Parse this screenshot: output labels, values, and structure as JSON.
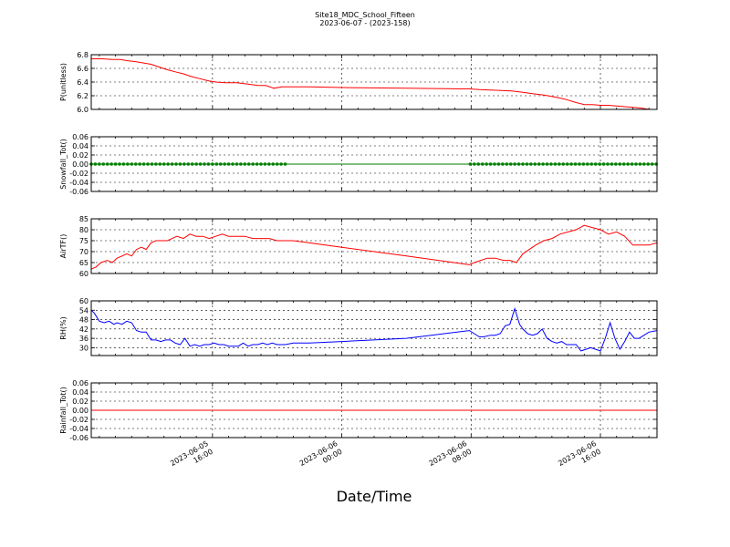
{
  "figure": {
    "title": "Site18_MDC_School_Fifteen",
    "subtitle": "2023-06-07 - (2023-158)",
    "xlabel": "Date/Time"
  },
  "chart_data": {
    "type": "line",
    "x_ticks": [
      {
        "t": 16,
        "label_line1": "2023-06-05",
        "label_line2": "16:00"
      },
      {
        "t": 24,
        "label_line1": "2023-06-06",
        "label_line2": "00:00"
      },
      {
        "t": 32,
        "label_line1": "2023-06-06",
        "label_line2": "08:00"
      },
      {
        "t": 40,
        "label_line1": "2023-06-06",
        "label_line2": "16:00"
      }
    ],
    "xlim_hours_from_2023_06_05": [
      8.5,
      43.5
    ],
    "grid": true,
    "panels": [
      {
        "id": "pressure",
        "ylabel": "P(unitless)",
        "ylim": [
          6.0,
          6.8
        ],
        "ticks": [
          "6.8",
          "6.6",
          "6.4",
          "6.2",
          "6.0"
        ],
        "tick_values": [
          6.8,
          6.6,
          6.4,
          6.2,
          6.0
        ],
        "color": "#ff0000",
        "series": [
          {
            "x": [
              8.5,
              9.2,
              9.8,
              10.3,
              10.8,
              11.2,
              11.7,
              12.2,
              12.7,
              13.2,
              13.7,
              14.2,
              14.7,
              15.2,
              15.7,
              16.2,
              16.8,
              17.5,
              18.2,
              18.8,
              19.3,
              19.8,
              20.3,
              21.0,
              22.0,
              24.0,
              28.0,
              31.9,
              32.5,
              33.5,
              34.5,
              35.2,
              35.8,
              36.5,
              37.2,
              37.8,
              38.5,
              39.0,
              39.5,
              40.0,
              40.5,
              41.0,
              41.5,
              42.0,
              42.5,
              43.0,
              43.5
            ],
            "y": [
              6.74,
              6.74,
              6.73,
              6.73,
              6.71,
              6.7,
              6.68,
              6.66,
              6.62,
              6.58,
              6.55,
              6.52,
              6.48,
              6.45,
              6.42,
              6.4,
              6.39,
              6.39,
              6.37,
              6.35,
              6.35,
              6.31,
              6.33,
              6.33,
              6.33,
              6.32,
              6.31,
              6.3,
              6.29,
              6.28,
              6.27,
              6.25,
              6.23,
              6.21,
              6.18,
              6.15,
              6.1,
              6.07,
              6.07,
              6.06,
              6.06,
              6.05,
              6.04,
              6.03,
              6.02,
              6.0,
              6.0
            ]
          }
        ]
      },
      {
        "id": "snowfall",
        "ylabel": "Snowfall_Tot()",
        "ylim": [
          -0.06,
          0.06
        ],
        "ticks": [
          "0.06",
          "0.04",
          "0.02",
          "0.00",
          "-0.02",
          "-0.04",
          "-0.06"
        ],
        "tick_values": [
          0.06,
          0.04,
          0.02,
          0.0,
          -0.02,
          -0.04,
          -0.06
        ],
        "color": "#007f00",
        "series": [
          {
            "x": [
              8.5,
              43.5
            ],
            "y": [
              0.0,
              0.0
            ]
          }
        ],
        "markers": [
          {
            "x_from": 8.5,
            "x_to": 20.6,
            "step": 0.25,
            "y": 0.0
          },
          {
            "x_from": 31.95,
            "x_to": 43.5,
            "step": 0.25,
            "y": 0.0
          }
        ]
      },
      {
        "id": "airtemp",
        "ylabel": "AirTF()",
        "ylim": [
          60,
          85
        ],
        "ticks": [
          "85",
          "80",
          "75",
          "70",
          "65",
          "60"
        ],
        "tick_values": [
          85,
          80,
          75,
          70,
          65,
          60
        ],
        "color": "#ff0000",
        "series": [
          {
            "x": [
              8.5,
              8.8,
              9.1,
              9.5,
              9.8,
              10.1,
              10.4,
              10.7,
              11.0,
              11.3,
              11.6,
              11.9,
              12.2,
              12.5,
              12.8,
              13.2,
              13.5,
              13.8,
              14.2,
              14.6,
              15.0,
              15.4,
              15.8,
              16.2,
              16.6,
              17.0,
              17.5,
              18.0,
              18.5,
              19.0,
              19.5,
              20.0,
              20.5,
              21.0,
              22.0,
              24.0,
              28.0,
              31.9,
              32.2,
              32.6,
              33.0,
              33.5,
              34.0,
              34.4,
              34.8,
              35.2,
              35.6,
              36.0,
              36.5,
              37.0,
              37.5,
              38.0,
              38.5,
              39.0,
              39.5,
              40.0,
              40.5,
              41.0,
              41.5,
              42.0,
              42.5,
              43.0,
              43.5
            ],
            "y": [
              62,
              63,
              65,
              66,
              65,
              67,
              68,
              69,
              68,
              71,
              72,
              71,
              74,
              75,
              75,
              75,
              76,
              77,
              76,
              78,
              77,
              77,
              76,
              77,
              78,
              77,
              77,
              77,
              76,
              76,
              76,
              75,
              75,
              75,
              74,
              72,
              68,
              64,
              65,
              66,
              67,
              67,
              66,
              66,
              65,
              69,
              71,
              73,
              75,
              76,
              78,
              79,
              80,
              82,
              81,
              80,
              78,
              79,
              77,
              73,
              73,
              73,
              74
            ]
          }
        ]
      },
      {
        "id": "rh",
        "ylabel": "RH(%)",
        "ylim": [
          25,
          60
        ],
        "ticks": [
          "60",
          "54",
          "48",
          "42",
          "36",
          "30"
        ],
        "tick_values": [
          60,
          54,
          48,
          42,
          36,
          30
        ],
        "color": "#0000ff",
        "series": [
          {
            "x": [
              8.5,
              8.7,
              9.0,
              9.3,
              9.6,
              9.9,
              10.1,
              10.4,
              10.7,
              11.0,
              11.3,
              11.6,
              11.9,
              12.2,
              12.5,
              12.8,
              13.1,
              13.4,
              13.7,
              14.0,
              14.3,
              14.6,
              14.9,
              15.2,
              15.5,
              15.8,
              16.1,
              16.4,
              16.7,
              17.0,
              17.3,
              17.6,
              17.9,
              18.2,
              18.5,
              18.8,
              19.1,
              19.4,
              19.7,
              20.0,
              20.5,
              21.0,
              22.0,
              24.0,
              28.0,
              31.9,
              32.2,
              32.5,
              32.8,
              33.2,
              33.5,
              33.8,
              34.1,
              34.4,
              34.7,
              35.0,
              35.2,
              35.5,
              35.8,
              36.1,
              36.4,
              36.7,
              37.0,
              37.3,
              37.6,
              37.9,
              38.2,
              38.5,
              38.8,
              39.1,
              39.4,
              39.7,
              40.0,
              40.3,
              40.6,
              40.9,
              41.2,
              41.5,
              41.8,
              42.1,
              42.4,
              42.7,
              43.0,
              43.5
            ],
            "y": [
              54,
              52,
              47,
              46,
              47,
              45,
              46,
              45,
              47,
              46,
              41,
              40,
              40,
              35,
              35,
              34,
              35,
              35,
              33,
              32,
              36,
              31,
              32,
              31,
              32,
              32,
              33,
              32,
              32,
              31,
              31,
              31,
              33,
              31,
              32,
              32,
              33,
              32,
              33,
              32,
              32,
              33,
              33,
              34,
              36,
              41,
              39,
              37,
              37,
              38,
              38,
              39,
              44,
              45,
              55,
              45,
              42,
              39,
              38,
              39,
              42,
              36,
              34,
              33,
              34,
              32,
              32,
              32,
              28,
              29,
              30,
              29,
              28,
              36,
              46,
              36,
              29,
              34,
              40,
              36,
              36,
              38,
              40,
              41
            ]
          }
        ]
      },
      {
        "id": "rainfall",
        "ylabel": "Rainfall_Tot()",
        "ylim": [
          -0.06,
          0.06
        ],
        "ticks": [
          "0.06",
          "0.04",
          "0.02",
          "0.00",
          "-0.02",
          "-0.04",
          "-0.06"
        ],
        "tick_values": [
          0.06,
          0.04,
          0.02,
          0.0,
          -0.02,
          -0.04,
          -0.06
        ],
        "color": "#ff0000",
        "series": [
          {
            "x": [
              8.5,
              43.5
            ],
            "y": [
              0.0,
              0.0
            ]
          }
        ]
      }
    ]
  }
}
